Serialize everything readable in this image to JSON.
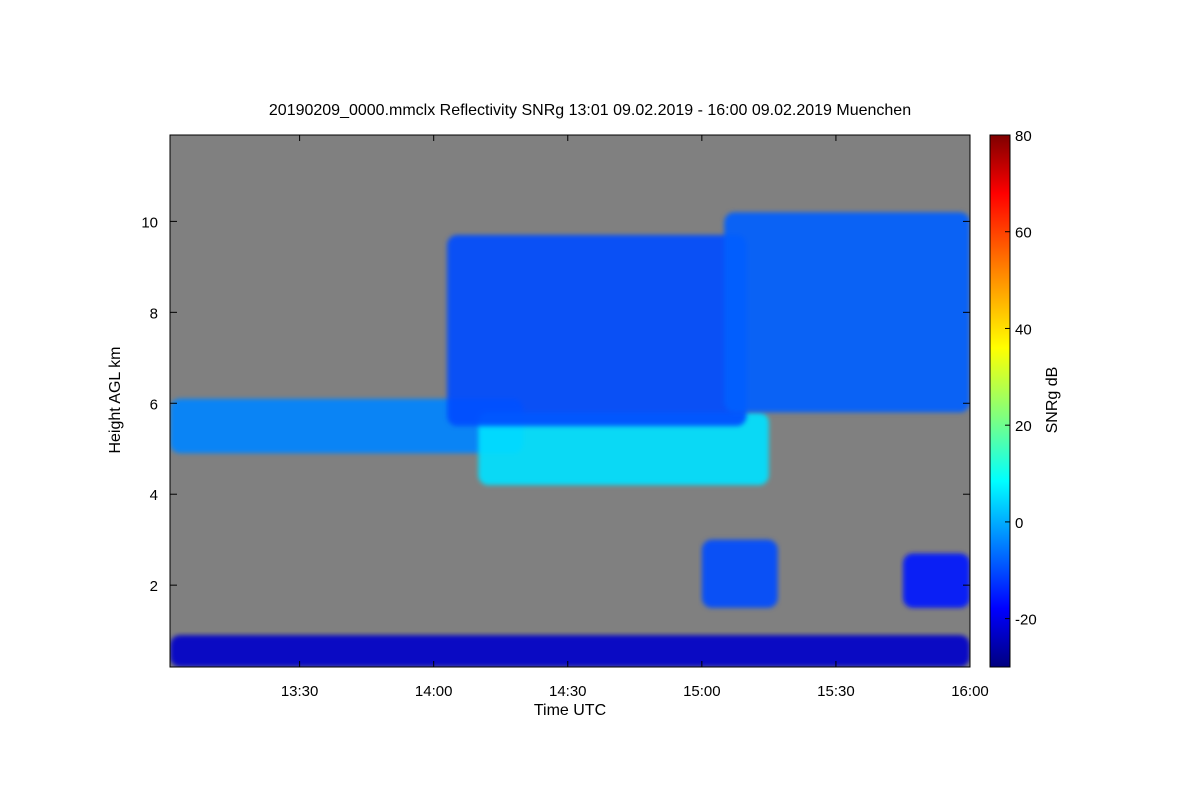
{
  "chart_data": {
    "type": "heatmap",
    "title": "20190209_0000.mmclx Reflectivity SNRg   13:01 09.02.2019 - 16:00 09.02.2019 Muenchen",
    "xlabel": "Time UTC",
    "ylabel": "Height AGL km",
    "colorbar_label": "SNRg dB",
    "x_ticks": [
      "13:30",
      "14:00",
      "14:30",
      "15:00",
      "15:30",
      "16:00"
    ],
    "y_ticks": [
      2,
      4,
      6,
      8,
      10
    ],
    "colorbar_ticks": [
      -20,
      0,
      20,
      40,
      60,
      80
    ],
    "xlim": [
      "13:01",
      "16:00"
    ],
    "ylim": [
      0.2,
      11.9
    ],
    "clim": [
      -30,
      80
    ],
    "background_color": "#808080",
    "colormap": [
      "#00007f",
      "#0000ff",
      "#007fff",
      "#00ffff",
      "#7fff7f",
      "#ffff00",
      "#ff7f00",
      "#ff0000",
      "#7f0000"
    ],
    "features": [
      {
        "start": "13:01",
        "end": "14:20",
        "bottom_km": 4.9,
        "top_km": 6.1,
        "snr_db": -2
      },
      {
        "start": "14:10",
        "end": "15:15",
        "bottom_km": 4.2,
        "top_km": 5.8,
        "snr_db": 8
      },
      {
        "start": "14:03",
        "end": "15:10",
        "bottom_km": 5.5,
        "top_km": 9.7,
        "snr_db": -8
      },
      {
        "start": "15:05",
        "end": "16:00",
        "bottom_km": 5.8,
        "top_km": 10.2,
        "snr_db": -6
      },
      {
        "start": "15:00",
        "end": "15:17",
        "bottom_km": 1.5,
        "top_km": 3.0,
        "snr_db": -8
      },
      {
        "start": "15:45",
        "end": "16:00",
        "bottom_km": 1.5,
        "top_km": 2.7,
        "snr_db": -14
      },
      {
        "start": "13:01",
        "end": "16:00",
        "bottom_km": 0.2,
        "top_km": 0.9,
        "snr_db": -22
      }
    ]
  }
}
